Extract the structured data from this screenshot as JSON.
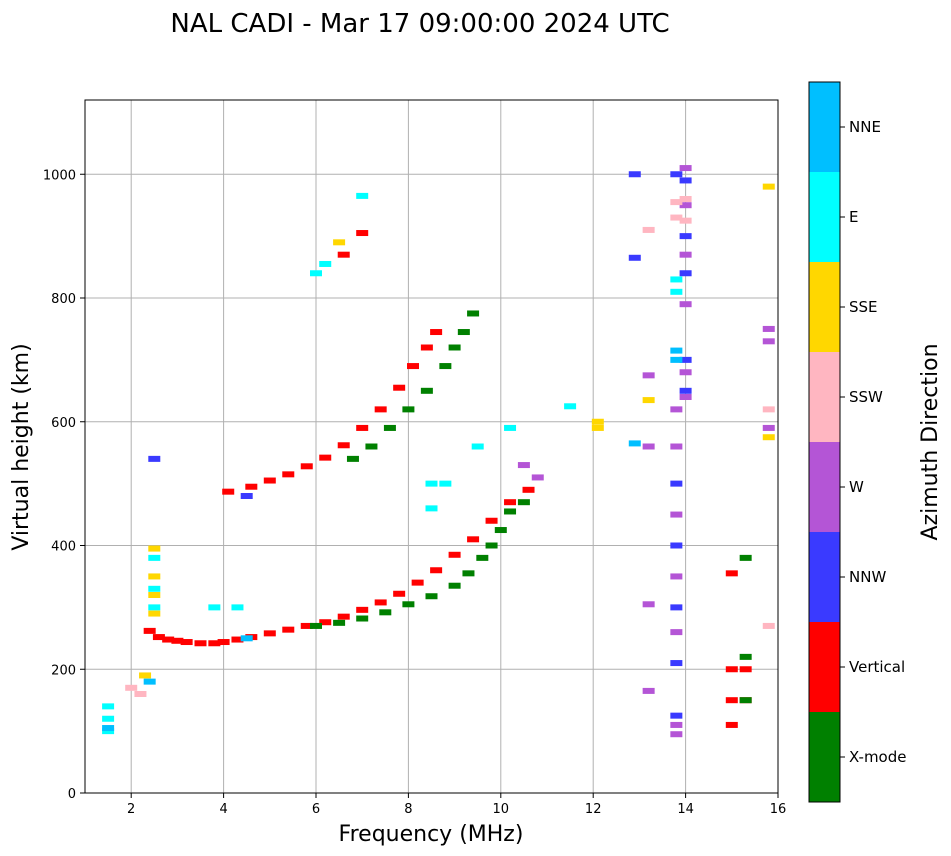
{
  "chart_data": {
    "type": "scatter",
    "title": "NAL CADI - Mar 17 09:00:00 2024 UTC",
    "xlabel": "Frequency (MHz)",
    "ylabel": "Virtual height (km)",
    "xlim": [
      1,
      16
    ],
    "ylim": [
      0,
      1120
    ],
    "xticks": [
      2,
      4,
      6,
      8,
      10,
      12,
      14,
      16
    ],
    "yticks": [
      0,
      200,
      400,
      600,
      800,
      1000
    ],
    "grid": true,
    "colorbar": {
      "title": "Azimuth Direction",
      "categories": [
        {
          "label": "X-mode",
          "color": "#008000"
        },
        {
          "label": "Vertical",
          "color": "#ff0000"
        },
        {
          "label": "NNW",
          "color": "#3a3aff"
        },
        {
          "label": "W",
          "color": "#b455d6"
        },
        {
          "label": "SSW",
          "color": "#ffb6c1"
        },
        {
          "label": "SSE",
          "color": "#ffd700"
        },
        {
          "label": "E",
          "color": "#00ffff"
        },
        {
          "label": "NNE",
          "color": "#00bfff"
        }
      ]
    },
    "series": [
      {
        "name": "Vertical",
        "points": [
          [
            2.4,
            262
          ],
          [
            2.6,
            252
          ],
          [
            2.8,
            248
          ],
          [
            3.0,
            246
          ],
          [
            3.2,
            244
          ],
          [
            3.5,
            242
          ],
          [
            3.8,
            242
          ],
          [
            4.0,
            244
          ],
          [
            4.3,
            248
          ],
          [
            4.6,
            252
          ],
          [
            5.0,
            258
          ],
          [
            5.4,
            264
          ],
          [
            5.8,
            270
          ],
          [
            6.2,
            276
          ],
          [
            6.6,
            285
          ],
          [
            7.0,
            296
          ],
          [
            7.4,
            308
          ],
          [
            7.8,
            322
          ],
          [
            8.2,
            340
          ],
          [
            8.6,
            360
          ],
          [
            9.0,
            385
          ],
          [
            9.4,
            410
          ],
          [
            9.8,
            440
          ],
          [
            10.2,
            470
          ],
          [
            10.6,
            490
          ],
          [
            4.1,
            487
          ],
          [
            4.6,
            495
          ],
          [
            5.0,
            505
          ],
          [
            5.4,
            515
          ],
          [
            5.8,
            528
          ],
          [
            6.2,
            542
          ],
          [
            6.6,
            562
          ],
          [
            7.0,
            590
          ],
          [
            7.4,
            620
          ],
          [
            7.8,
            655
          ],
          [
            8.1,
            690
          ],
          [
            8.4,
            720
          ],
          [
            8.6,
            745
          ],
          [
            6.6,
            870
          ],
          [
            7.0,
            905
          ],
          [
            15.0,
            355
          ],
          [
            15.0,
            200
          ],
          [
            15.0,
            150
          ],
          [
            15.0,
            110
          ],
          [
            15.3,
            200
          ],
          [
            15.3,
            150
          ]
        ]
      },
      {
        "name": "X-mode",
        "points": [
          [
            6.0,
            270
          ],
          [
            6.5,
            275
          ],
          [
            7.0,
            282
          ],
          [
            7.5,
            292
          ],
          [
            8.0,
            305
          ],
          [
            8.5,
            318
          ],
          [
            9.0,
            335
          ],
          [
            9.3,
            355
          ],
          [
            9.6,
            380
          ],
          [
            9.8,
            400
          ],
          [
            10.0,
            425
          ],
          [
            10.2,
            455
          ],
          [
            10.5,
            470
          ],
          [
            6.8,
            540
          ],
          [
            7.2,
            560
          ],
          [
            7.6,
            590
          ],
          [
            8.0,
            620
          ],
          [
            8.4,
            650
          ],
          [
            8.8,
            690
          ],
          [
            9.0,
            720
          ],
          [
            9.2,
            745
          ],
          [
            9.4,
            775
          ],
          [
            15.3,
            380
          ],
          [
            15.3,
            220
          ],
          [
            15.3,
            150
          ]
        ]
      },
      {
        "name": "NNW",
        "points": [
          [
            14.0,
            990
          ],
          [
            14.0,
            900
          ],
          [
            14.0,
            840
          ],
          [
            13.8,
            1000
          ],
          [
            12.9,
            1000
          ],
          [
            12.9,
            865
          ],
          [
            14.0,
            700
          ],
          [
            14.0,
            650
          ],
          [
            13.8,
            500
          ],
          [
            13.8,
            400
          ],
          [
            13.8,
            300
          ],
          [
            13.8,
            210
          ],
          [
            13.8,
            125
          ],
          [
            4.5,
            480
          ],
          [
            2.5,
            540
          ]
        ]
      },
      {
        "name": "W",
        "points": [
          [
            14.0,
            1010
          ],
          [
            14.0,
            950
          ],
          [
            14.0,
            870
          ],
          [
            14.0,
            790
          ],
          [
            14.0,
            680
          ],
          [
            14.0,
            640
          ],
          [
            13.8,
            620
          ],
          [
            13.8,
            560
          ],
          [
            13.8,
            450
          ],
          [
            13.8,
            350
          ],
          [
            13.8,
            260
          ],
          [
            13.8,
            110
          ],
          [
            13.8,
            95
          ],
          [
            13.2,
            675
          ],
          [
            13.2,
            560
          ],
          [
            13.2,
            305
          ],
          [
            13.2,
            165
          ],
          [
            15.8,
            750
          ],
          [
            15.8,
            730
          ],
          [
            15.8,
            590
          ],
          [
            10.5,
            530
          ],
          [
            10.8,
            510
          ]
        ]
      },
      {
        "name": "SSW",
        "points": [
          [
            13.2,
            910
          ],
          [
            14.0,
            925
          ],
          [
            13.8,
            930
          ],
          [
            13.8,
            955
          ],
          [
            14.0,
            960
          ],
          [
            2.0,
            170
          ],
          [
            2.2,
            160
          ],
          [
            15.8,
            620
          ],
          [
            15.8,
            270
          ]
        ]
      },
      {
        "name": "SSE",
        "points": [
          [
            2.5,
            395
          ],
          [
            2.5,
            350
          ],
          [
            2.5,
            320
          ],
          [
            2.5,
            290
          ],
          [
            2.3,
            190
          ],
          [
            15.8,
            980
          ],
          [
            15.8,
            575
          ],
          [
            12.1,
            600
          ],
          [
            12.1,
            590
          ],
          [
            13.2,
            635
          ],
          [
            6.5,
            890
          ]
        ]
      },
      {
        "name": "E",
        "points": [
          [
            1.5,
            140
          ],
          [
            1.5,
            120
          ],
          [
            1.5,
            100
          ],
          [
            2.5,
            380
          ],
          [
            2.5,
            330
          ],
          [
            2.5,
            300
          ],
          [
            8.5,
            460
          ],
          [
            8.5,
            500
          ],
          [
            8.8,
            500
          ],
          [
            9.5,
            560
          ],
          [
            10.2,
            590
          ],
          [
            11.5,
            625
          ],
          [
            6.0,
            840
          ],
          [
            6.2,
            855
          ],
          [
            7.0,
            965
          ],
          [
            13.8,
            830
          ],
          [
            13.8,
            810
          ],
          [
            4.3,
            300
          ],
          [
            3.8,
            300
          ]
        ]
      },
      {
        "name": "NNE",
        "points": [
          [
            12.9,
            565
          ],
          [
            13.8,
            715
          ],
          [
            13.8,
            700
          ],
          [
            2.4,
            180
          ],
          [
            1.5,
            105
          ],
          [
            4.5,
            250
          ]
        ]
      }
    ]
  }
}
